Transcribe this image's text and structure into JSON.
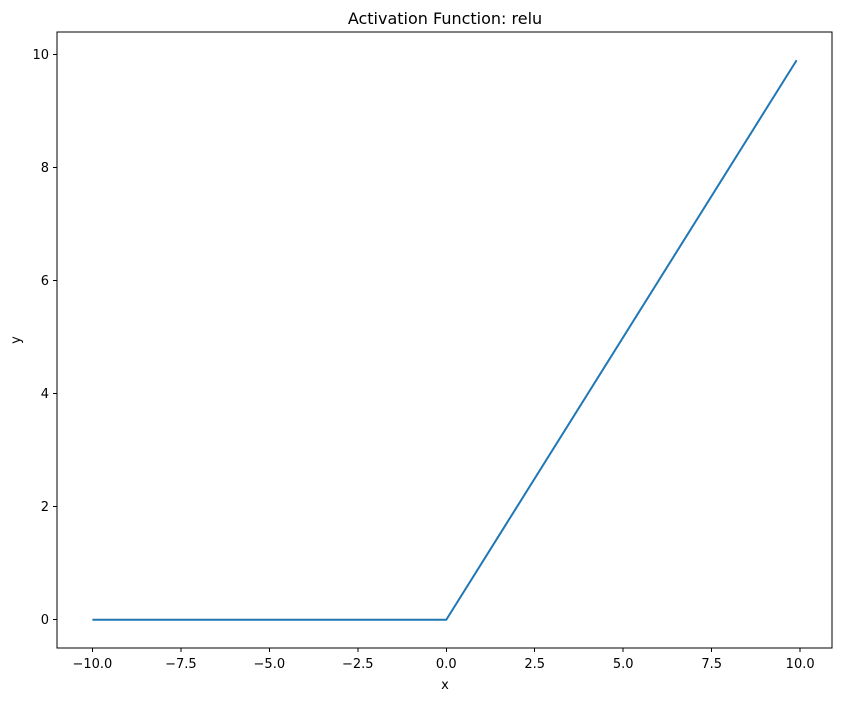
{
  "chart_data": {
    "type": "line",
    "title": "Activation Function: relu",
    "xlabel": "x",
    "ylabel": "y",
    "xlim": [
      -11.0,
      10.9
    ],
    "ylim": [
      -0.5,
      10.4
    ],
    "grid": false,
    "x_ticks": [
      -10.0,
      -7.5,
      -5.0,
      -2.5,
      0.0,
      2.5,
      5.0,
      7.5,
      10.0
    ],
    "x_tick_labels": [
      "−10.0",
      "−7.5",
      "−5.0",
      "−2.5",
      "0.0",
      "2.5",
      "5.0",
      "7.5",
      "10.0"
    ],
    "y_ticks": [
      0,
      2,
      4,
      6,
      8,
      10
    ],
    "y_tick_labels": [
      "0",
      "2",
      "4",
      "6",
      "8",
      "10"
    ],
    "series": [
      {
        "color": "#1f77b4",
        "x": [
          -10.0,
          0.0,
          9.9
        ],
        "y": [
          0.0,
          0.0,
          9.9
        ]
      }
    ]
  }
}
